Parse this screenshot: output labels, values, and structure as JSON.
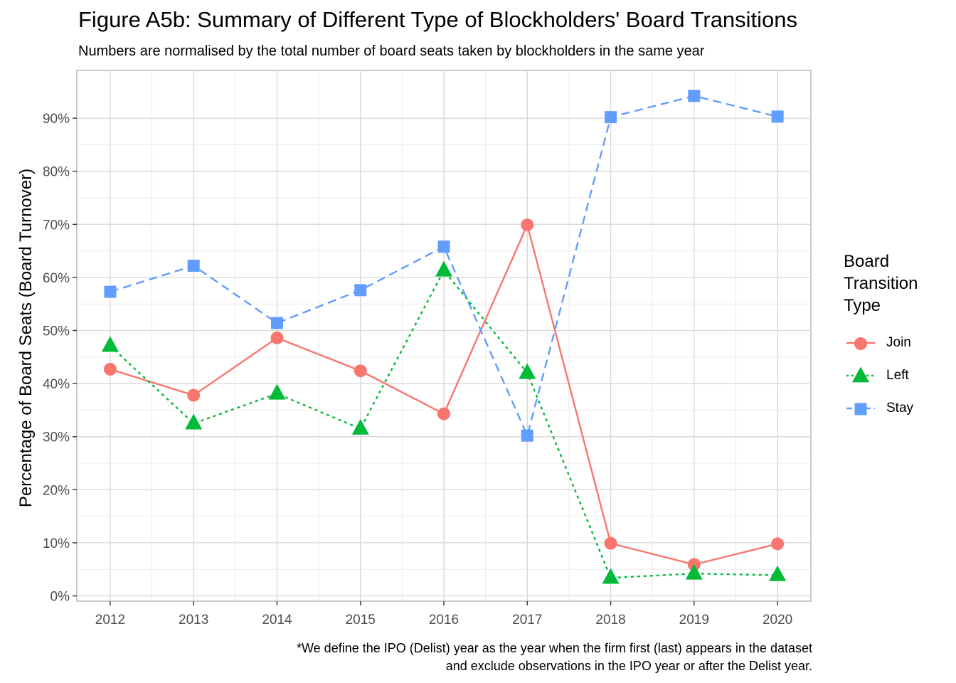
{
  "title": "Figure A5b: Summary of Different Type of Blockholders' Board Transitions",
  "subtitle": "Numbers are normalised by the total number of board seats taken by blockholders in the same year",
  "caption_lines": [
    "*We define the IPO (Delist) year as the year when the firm first (last) appears in the dataset",
    "and exclude observations in the IPO year or after the Delist year."
  ],
  "legend_title_lines": [
    "Board",
    "Transition",
    "Type"
  ],
  "chart_data": {
    "type": "line",
    "x": [
      2012,
      2013,
      2014,
      2015,
      2016,
      2017,
      2018,
      2019,
      2020
    ],
    "xticks": [
      "2012",
      "2013",
      "2014",
      "2015",
      "2016",
      "2017",
      "2018",
      "2019",
      "2020"
    ],
    "ylabel": "Percentage of Board Seats (Board Turnover)",
    "xlabel": "",
    "ylim": [
      -0.01,
      0.99
    ],
    "yticks": [
      0,
      0.1,
      0.2,
      0.3,
      0.4,
      0.5,
      0.6,
      0.7,
      0.8,
      0.9
    ],
    "ytick_labels": [
      "0%",
      "10%",
      "20%",
      "30%",
      "40%",
      "50%",
      "60%",
      "70%",
      "80%",
      "90%"
    ],
    "grid": true,
    "legend_position": "right",
    "series": [
      {
        "name": "Join",
        "color": "#F8766D",
        "marker": "circle",
        "line": "solid",
        "values": [
          0.427,
          0.378,
          0.486,
          0.424,
          0.343,
          0.699,
          0.099,
          0.059,
          0.098
        ]
      },
      {
        "name": "Left",
        "color": "#00BA38",
        "marker": "triangle",
        "line": "dotted",
        "values": [
          0.471,
          0.325,
          0.381,
          0.315,
          0.613,
          0.42,
          0.034,
          0.042,
          0.039
        ]
      },
      {
        "name": "Stay",
        "color": "#619CFF",
        "marker": "square",
        "line": "dashed",
        "values": [
          0.573,
          0.622,
          0.514,
          0.576,
          0.658,
          0.302,
          0.902,
          0.942,
          0.903
        ]
      }
    ]
  }
}
